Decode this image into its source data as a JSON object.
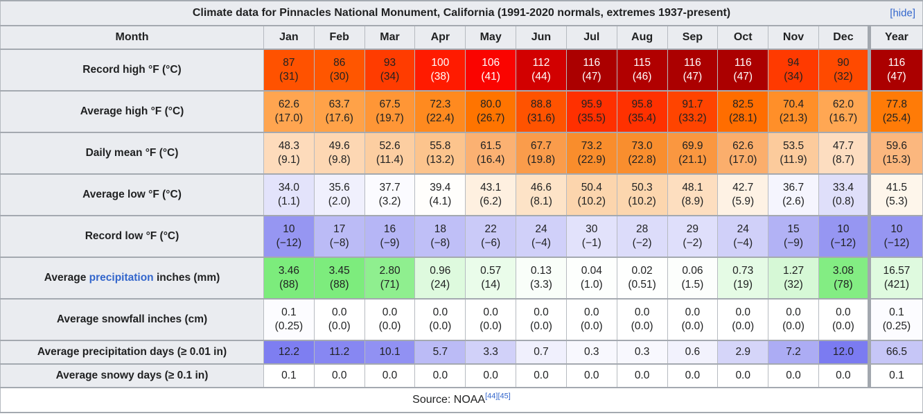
{
  "title": "Climate data for Pinnacles National Monument, California (1991-2020 normals, extremes 1937-present)",
  "hide_label": "[hide]",
  "colors": {
    "link": "#3366cc",
    "header_bg": "#eaecf0",
    "border": "#a2a9b1"
  },
  "header": {
    "month_label": "Month",
    "months": [
      "Jan",
      "Feb",
      "Mar",
      "Apr",
      "May",
      "Jun",
      "Jul",
      "Aug",
      "Sep",
      "Oct",
      "Nov",
      "Dec"
    ],
    "year_label": "Year"
  },
  "rows": [
    {
      "key": "record-high",
      "label": "Record high °F (°C)",
      "cells": [
        {
          "v": "87",
          "s": "(31)",
          "bg": "#FF5200"
        },
        {
          "v": "86",
          "s": "(30)",
          "bg": "#FF5600"
        },
        {
          "v": "93",
          "s": "(34)",
          "bg": "#FF3C00"
        },
        {
          "v": "100",
          "s": "(38)",
          "bg": "#FF1B00",
          "fg": "#FFFFFF"
        },
        {
          "v": "106",
          "s": "(41)",
          "bg": "#FA0400",
          "fg": "#FFFFFF"
        },
        {
          "v": "112",
          "s": "(44)",
          "bg": "#D20000",
          "fg": "#FFFFFF"
        },
        {
          "v": "116",
          "s": "(47)",
          "bg": "#AB0000",
          "fg": "#FFFFFF"
        },
        {
          "v": "115",
          "s": "(46)",
          "bg": "#B10000",
          "fg": "#FFFFFF"
        },
        {
          "v": "116",
          "s": "(47)",
          "bg": "#AB0000",
          "fg": "#FFFFFF"
        },
        {
          "v": "116",
          "s": "(47)",
          "bg": "#AB0000",
          "fg": "#FFFFFF"
        },
        {
          "v": "94",
          "s": "(34)",
          "bg": "#FF3A00"
        },
        {
          "v": "90",
          "s": "(32)",
          "bg": "#FF4A00"
        },
        {
          "v": "116",
          "s": "(47)",
          "bg": "#AB0000",
          "fg": "#FFFFFF"
        }
      ]
    },
    {
      "key": "average-high",
      "label": "Average high °F (°C)",
      "cells": [
        {
          "v": "62.6",
          "s": "(17.0)",
          "bg": "#FFA550"
        },
        {
          "v": "63.7",
          "s": "(17.6)",
          "bg": "#FFA248"
        },
        {
          "v": "67.5",
          "s": "(19.7)",
          "bg": "#FF9636"
        },
        {
          "v": "72.3",
          "s": "(22.4)",
          "bg": "#FF8A1F"
        },
        {
          "v": "80.0",
          "s": "(26.7)",
          "bg": "#FF7400"
        },
        {
          "v": "88.8",
          "s": "(31.6)",
          "bg": "#FF5300"
        },
        {
          "v": "95.9",
          "s": "(35.5)",
          "bg": "#FF3000"
        },
        {
          "v": "95.8",
          "s": "(35.4)",
          "bg": "#FF3100"
        },
        {
          "v": "91.7",
          "s": "(33.2)",
          "bg": "#FF4400"
        },
        {
          "v": "82.5",
          "s": "(28.1)",
          "bg": "#FF6D00"
        },
        {
          "v": "70.4",
          "s": "(21.3)",
          "bg": "#FF8F29"
        },
        {
          "v": "62.0",
          "s": "(16.7)",
          "bg": "#FFA753"
        },
        {
          "v": "77.8",
          "s": "(25.4)",
          "bg": "#FF7B07"
        }
      ]
    },
    {
      "key": "daily-mean",
      "label": "Daily mean °F (°C)",
      "cells": [
        {
          "v": "48.3",
          "s": "(9.1)",
          "bg": "#FDDBBB"
        },
        {
          "v": "49.6",
          "s": "(9.8)",
          "bg": "#FDD7B3"
        },
        {
          "v": "52.6",
          "s": "(11.4)",
          "bg": "#FCCEA1"
        },
        {
          "v": "55.8",
          "s": "(13.2)",
          "bg": "#FCC48D"
        },
        {
          "v": "61.5",
          "s": "(16.4)",
          "bg": "#FBB172"
        },
        {
          "v": "67.7",
          "s": "(19.8)",
          "bg": "#FA9C4B"
        },
        {
          "v": "73.2",
          "s": "(22.9)",
          "bg": "#F98D2C"
        },
        {
          "v": "73.0",
          "s": "(22.8)",
          "bg": "#F98E2E"
        },
        {
          "v": "69.9",
          "s": "(21.1)",
          "bg": "#FA9740"
        },
        {
          "v": "62.6",
          "s": "(17.0)",
          "bg": "#FBAE6C"
        },
        {
          "v": "53.5",
          "s": "(11.9)",
          "bg": "#FCCB9C"
        },
        {
          "v": "47.7",
          "s": "(8.7)",
          "bg": "#FDDDC0"
        },
        {
          "v": "59.6",
          "s": "(15.3)",
          "bg": "#FBB77E"
        }
      ]
    },
    {
      "key": "average-low",
      "label": "Average low °F (°C)",
      "cells": [
        {
          "v": "34.0",
          "s": "(1.1)",
          "bg": "#E3E3FB"
        },
        {
          "v": "35.6",
          "s": "(2.0)",
          "bg": "#F0F0FD"
        },
        {
          "v": "37.7",
          "s": "(3.2)",
          "bg": "#FBFBFF"
        },
        {
          "v": "39.4",
          "s": "(4.1)",
          "bg": "#FFFEFC"
        },
        {
          "v": "43.1",
          "s": "(6.2)",
          "bg": "#FEF0E0"
        },
        {
          "v": "46.6",
          "s": "(8.1)",
          "bg": "#FDE3C7"
        },
        {
          "v": "50.4",
          "s": "(10.2)",
          "bg": "#FCD5AD"
        },
        {
          "v": "50.3",
          "s": "(10.2)",
          "bg": "#FCD6AE"
        },
        {
          "v": "48.1",
          "s": "(8.9)",
          "bg": "#FDDEBF"
        },
        {
          "v": "42.7",
          "s": "(5.9)",
          "bg": "#FEF2E4"
        },
        {
          "v": "36.7",
          "s": "(2.6)",
          "bg": "#F5F5FE"
        },
        {
          "v": "33.4",
          "s": "(0.8)",
          "bg": "#DFDFFA"
        },
        {
          "v": "41.5",
          "s": "(5.3)",
          "bg": "#FEF6EB"
        }
      ]
    },
    {
      "key": "record-low",
      "label": "Record low °F (°C)",
      "cells": [
        {
          "v": "10",
          "s": "(−12)",
          "bg": "#9696F2"
        },
        {
          "v": "17",
          "s": "(−8)",
          "bg": "#BBBBF6"
        },
        {
          "v": "16",
          "s": "(−9)",
          "bg": "#B6B6F6"
        },
        {
          "v": "18",
          "s": "(−8)",
          "bg": "#BFBFF7"
        },
        {
          "v": "22",
          "s": "(−6)",
          "bg": "#CACAF8"
        },
        {
          "v": "24",
          "s": "(−4)",
          "bg": "#D0D0F9"
        },
        {
          "v": "30",
          "s": "(−1)",
          "bg": "#E2E2FB"
        },
        {
          "v": "28",
          "s": "(−2)",
          "bg": "#DCDCFA"
        },
        {
          "v": "29",
          "s": "(−2)",
          "bg": "#DFDFFB"
        },
        {
          "v": "24",
          "s": "(−4)",
          "bg": "#D0D0F9"
        },
        {
          "v": "15",
          "s": "(−9)",
          "bg": "#B2B2F5"
        },
        {
          "v": "10",
          "s": "(−12)",
          "bg": "#9696F2"
        },
        {
          "v": "10",
          "s": "(−12)",
          "bg": "#9696F2"
        }
      ]
    },
    {
      "key": "precipitation",
      "label_pre": "Average ",
      "label_link": "precipitation",
      "label_post": " inches (mm)",
      "cells": [
        {
          "v": "3.46",
          "s": "(88)",
          "bg": "#7CEC7C"
        },
        {
          "v": "3.45",
          "s": "(88)",
          "bg": "#7DEC7D"
        },
        {
          "v": "2.80",
          "s": "(71)",
          "bg": "#8FEF8F"
        },
        {
          "v": "0.96",
          "s": "(24)",
          "bg": "#DEFADE"
        },
        {
          "v": "0.57",
          "s": "(14)",
          "bg": "#EAFCEA"
        },
        {
          "v": "0.13",
          "s": "(3.3)",
          "bg": "#F9FEF9"
        },
        {
          "v": "0.04",
          "s": "(1.0)",
          "bg": "#FDFFFD"
        },
        {
          "v": "0.02",
          "s": "(0.51)",
          "bg": "#FEFFFE"
        },
        {
          "v": "0.06",
          "s": "(1.5)",
          "bg": "#FCFEFC"
        },
        {
          "v": "0.73",
          "s": "(19)",
          "bg": "#E5FBE5"
        },
        {
          "v": "1.27",
          "s": "(32)",
          "bg": "#D6F8D6"
        },
        {
          "v": "3.08",
          "s": "(78)",
          "bg": "#83ED83"
        },
        {
          "v": "16.57",
          "s": "(421)",
          "bg": "#DFFADF"
        }
      ]
    },
    {
      "key": "snowfall",
      "label": "Average snowfall inches (cm)",
      "cells": [
        {
          "v": "0.1",
          "s": "(0.25)",
          "bg": "#FCFCFF"
        },
        {
          "v": "0.0",
          "s": "(0.0)",
          "bg": "#FFFFFF"
        },
        {
          "v": "0.0",
          "s": "(0.0)",
          "bg": "#FFFFFF"
        },
        {
          "v": "0.0",
          "s": "(0.0)",
          "bg": "#FFFFFF"
        },
        {
          "v": "0.0",
          "s": "(0.0)",
          "bg": "#FFFFFF"
        },
        {
          "v": "0.0",
          "s": "(0.0)",
          "bg": "#FFFFFF"
        },
        {
          "v": "0.0",
          "s": "(0.0)",
          "bg": "#FFFFFF"
        },
        {
          "v": "0.0",
          "s": "(0.0)",
          "bg": "#FFFFFF"
        },
        {
          "v": "0.0",
          "s": "(0.0)",
          "bg": "#FFFFFF"
        },
        {
          "v": "0.0",
          "s": "(0.0)",
          "bg": "#FFFFFF"
        },
        {
          "v": "0.0",
          "s": "(0.0)",
          "bg": "#FFFFFF"
        },
        {
          "v": "0.0",
          "s": "(0.0)",
          "bg": "#FFFFFF"
        },
        {
          "v": "0.1",
          "s": "(0.25)",
          "bg": "#FCFCFF"
        }
      ]
    },
    {
      "key": "precip-days",
      "label": "Average precipitation days (≥ 0.01 in)",
      "compact": true,
      "cells": [
        {
          "v": "12.2",
          "bg": "#7E7EF1"
        },
        {
          "v": "11.2",
          "bg": "#8787F2"
        },
        {
          "v": "10.1",
          "bg": "#9191F3"
        },
        {
          "v": "5.7",
          "bg": "#BBBBF6"
        },
        {
          "v": "3.3",
          "bg": "#D1D1F9"
        },
        {
          "v": "0.7",
          "bg": "#F0F0FD"
        },
        {
          "v": "0.3",
          "bg": "#F8F8FE"
        },
        {
          "v": "0.3",
          "bg": "#F8F8FE"
        },
        {
          "v": "0.6",
          "bg": "#F2F2FD"
        },
        {
          "v": "2.9",
          "bg": "#D5D5F9"
        },
        {
          "v": "7.2",
          "bg": "#ACACF4"
        },
        {
          "v": "12.0",
          "bg": "#7B7BF1"
        },
        {
          "v": "66.5",
          "bg": "#C6C6F7"
        }
      ]
    },
    {
      "key": "snowy-days",
      "label": "Average snowy days (≥ 0.1 in)",
      "compact": true,
      "cells": [
        {
          "v": "0.1",
          "bg": "#FFFFFF"
        },
        {
          "v": "0.0",
          "bg": "#FFFFFF"
        },
        {
          "v": "0.0",
          "bg": "#FFFFFF"
        },
        {
          "v": "0.0",
          "bg": "#FFFFFF"
        },
        {
          "v": "0.0",
          "bg": "#FFFFFF"
        },
        {
          "v": "0.0",
          "bg": "#FFFFFF"
        },
        {
          "v": "0.0",
          "bg": "#FFFFFF"
        },
        {
          "v": "0.0",
          "bg": "#FFFFFF"
        },
        {
          "v": "0.0",
          "bg": "#FFFFFF"
        },
        {
          "v": "0.0",
          "bg": "#FFFFFF"
        },
        {
          "v": "0.0",
          "bg": "#FFFFFF"
        },
        {
          "v": "0.0",
          "bg": "#FFFFFF"
        },
        {
          "v": "0.1",
          "bg": "#FFFFFF"
        }
      ]
    }
  ],
  "footer": {
    "text": "Source: NOAA",
    "refs": [
      "[44]",
      "[45]"
    ]
  },
  "chart_data": {
    "type": "table",
    "title": "Climate data for Pinnacles National Monument, California (1991-2020 normals, extremes 1937-present)",
    "categories": [
      "Jan",
      "Feb",
      "Mar",
      "Apr",
      "May",
      "Jun",
      "Jul",
      "Aug",
      "Sep",
      "Oct",
      "Nov",
      "Dec",
      "Year"
    ],
    "series": [
      {
        "name": "Record high °F",
        "values": [
          87,
          86,
          93,
          100,
          106,
          112,
          116,
          115,
          116,
          116,
          94,
          90,
          116
        ]
      },
      {
        "name": "Record high °C",
        "values": [
          31,
          30,
          34,
          38,
          41,
          44,
          47,
          46,
          47,
          47,
          34,
          32,
          47
        ]
      },
      {
        "name": "Average high °F",
        "values": [
          62.6,
          63.7,
          67.5,
          72.3,
          80.0,
          88.8,
          95.9,
          95.8,
          91.7,
          82.5,
          70.4,
          62.0,
          77.8
        ]
      },
      {
        "name": "Average high °C",
        "values": [
          17.0,
          17.6,
          19.7,
          22.4,
          26.7,
          31.6,
          35.5,
          35.4,
          33.2,
          28.1,
          21.3,
          16.7,
          25.4
        ]
      },
      {
        "name": "Daily mean °F",
        "values": [
          48.3,
          49.6,
          52.6,
          55.8,
          61.5,
          67.7,
          73.2,
          73.0,
          69.9,
          62.6,
          53.5,
          47.7,
          59.6
        ]
      },
      {
        "name": "Daily mean °C",
        "values": [
          9.1,
          9.8,
          11.4,
          13.2,
          16.4,
          19.8,
          22.9,
          22.8,
          21.1,
          17.0,
          11.9,
          8.7,
          15.3
        ]
      },
      {
        "name": "Average low °F",
        "values": [
          34.0,
          35.6,
          37.7,
          39.4,
          43.1,
          46.6,
          50.4,
          50.3,
          48.1,
          42.7,
          36.7,
          33.4,
          41.5
        ]
      },
      {
        "name": "Average low °C",
        "values": [
          1.1,
          2.0,
          3.2,
          4.1,
          6.2,
          8.1,
          10.2,
          10.2,
          8.9,
          5.9,
          2.6,
          0.8,
          5.3
        ]
      },
      {
        "name": "Record low °F",
        "values": [
          10,
          17,
          16,
          18,
          22,
          24,
          30,
          28,
          29,
          24,
          15,
          10,
          10
        ]
      },
      {
        "name": "Record low °C",
        "values": [
          -12,
          -8,
          -9,
          -8,
          -6,
          -4,
          -1,
          -2,
          -2,
          -4,
          -9,
          -12,
          -12
        ]
      },
      {
        "name": "Average precipitation inches",
        "values": [
          3.46,
          3.45,
          2.8,
          0.96,
          0.57,
          0.13,
          0.04,
          0.02,
          0.06,
          0.73,
          1.27,
          3.08,
          16.57
        ]
      },
      {
        "name": "Average precipitation mm",
        "values": [
          88,
          88,
          71,
          24,
          14,
          3.3,
          1.0,
          0.51,
          1.5,
          19,
          32,
          78,
          421
        ]
      },
      {
        "name": "Average snowfall inches",
        "values": [
          0.1,
          0.0,
          0.0,
          0.0,
          0.0,
          0.0,
          0.0,
          0.0,
          0.0,
          0.0,
          0.0,
          0.0,
          0.1
        ]
      },
      {
        "name": "Average snowfall cm",
        "values": [
          0.25,
          0.0,
          0.0,
          0.0,
          0.0,
          0.0,
          0.0,
          0.0,
          0.0,
          0.0,
          0.0,
          0.0,
          0.25
        ]
      },
      {
        "name": "Average precipitation days (≥ 0.01 in)",
        "values": [
          12.2,
          11.2,
          10.1,
          5.7,
          3.3,
          0.7,
          0.3,
          0.3,
          0.6,
          2.9,
          7.2,
          12.0,
          66.5
        ]
      },
      {
        "name": "Average snowy days (≥ 0.1 in)",
        "values": [
          0.1,
          0.0,
          0.0,
          0.0,
          0.0,
          0.0,
          0.0,
          0.0,
          0.0,
          0.0,
          0.0,
          0.0,
          0.1
        ]
      }
    ]
  }
}
